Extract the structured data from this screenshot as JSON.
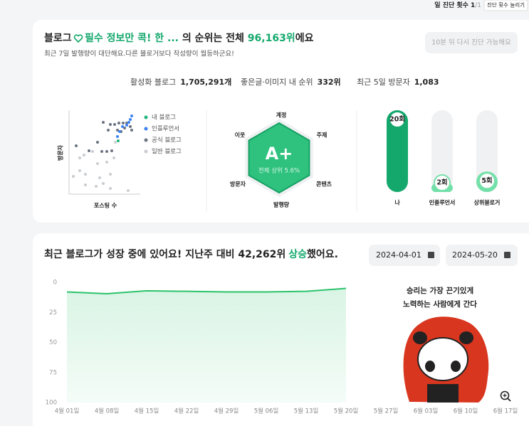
{
  "header": {
    "count_label": "일 진단 횟수",
    "count": "1",
    "count_total": "/1",
    "button": "진단 횟수 늘리기"
  },
  "summary": {
    "title_prefix": "블로그",
    "title_name": "필수 정보만 콕! 한 ...",
    "title_mid": " 의 순위는 전체 ",
    "rank": "96,163위",
    "title_suffix": "에요",
    "subtitle": "최근 7일 발행량이 대단해요.다른 블로거보다 작성량이 월등하군요!",
    "retry_button": "10분 뒤 다시 진단 가능해요",
    "stats": [
      {
        "label": "활성화 블로그",
        "value": "1,705,291개"
      },
      {
        "label": "좋은글·이미지 내 순위",
        "value": "332위"
      },
      {
        "label": "최근 5일 방문자",
        "value": "1,083"
      }
    ]
  },
  "scatter": {
    "x_label": "포스팅 수",
    "y_label": "방문자",
    "legend": [
      {
        "name": "내 블로그",
        "color": "#1fb57b"
      },
      {
        "name": "인플루언서",
        "color": "#3b82f6"
      },
      {
        "name": "공식 블로그",
        "color": "#6b7280"
      },
      {
        "name": "일반 블로그",
        "color": "#c9ccd1"
      }
    ]
  },
  "radar": {
    "grade": "A+",
    "grade_note": "전체 상위 5.6%",
    "axes": [
      "계정",
      "주제",
      "콘텐츠",
      "발행량",
      "방문자",
      "이웃"
    ]
  },
  "posting_chart": {
    "type": "bar",
    "categories": [
      "나",
      "인플루언서",
      "상위블로거"
    ],
    "values": [
      20,
      2,
      5
    ],
    "value_labels": [
      "20회",
      "2회",
      "5회"
    ],
    "colors": [
      "#14a86c",
      "#74e0a9",
      "#74e0a9"
    ]
  },
  "growth": {
    "title_prefix": "최근 블로그가 성장 중에 있어요! 지난주 대비 ",
    "rank_change": "42,262위",
    "title_word": "상승",
    "title_suffix": "했어요.",
    "start_date": "2024-04-01",
    "end_date": "2024-05-20",
    "sticker_text": [
      "승리는 가장 끈기있게",
      "노력하는 사람에게 간다"
    ]
  },
  "chart_data": {
    "type": "line",
    "categories": [
      "4월 01일",
      "4월 08일",
      "4월 15일",
      "4월 22일",
      "4월 29일",
      "5월 06일",
      "5월 13일",
      "5월 20일",
      "5월 27일",
      "6월 03일",
      "6월 10일",
      "6월 17일"
    ],
    "series": [
      {
        "color": "#2cc36b",
        "values": [
          8,
          9.5,
          7,
          7.5,
          8,
          8,
          7.5,
          5,
          null,
          null,
          null,
          null
        ]
      }
    ],
    "ylim": [
      0,
      100
    ],
    "yticks": [
      0,
      25,
      50,
      75,
      100
    ],
    "invert_y": true,
    "area": true,
    "grid": false
  }
}
